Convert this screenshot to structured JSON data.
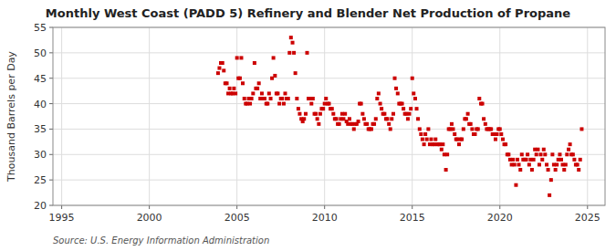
{
  "chart_data": {
    "type": "scatter",
    "title": "Monthly West Coast (PADD 5) Refinery and Blender Net Production of Propane",
    "ylabel": "Thousand Barrels per Day",
    "annotation": "Source: U.S. Energy Information Administration",
    "color": "#cc0000",
    "marker": "square",
    "grid": true,
    "xlim": [
      1994.5,
      2026
    ],
    "ylim": [
      20,
      55
    ],
    "xticks": [
      1995,
      2000,
      2005,
      2010,
      2015,
      2020,
      2025
    ],
    "yticks": [
      20,
      25,
      30,
      35,
      40,
      45,
      50,
      55
    ],
    "x": [
      2003.92,
      2004.0,
      2004.08,
      2004.17,
      2004.25,
      2004.33,
      2004.42,
      2004.5,
      2004.58,
      2004.67,
      2004.75,
      2004.83,
      2004.92,
      2005.0,
      2005.08,
      2005.17,
      2005.25,
      2005.33,
      2005.42,
      2005.5,
      2005.58,
      2005.67,
      2005.75,
      2005.83,
      2005.92,
      2006.0,
      2006.08,
      2006.17,
      2006.25,
      2006.33,
      2006.42,
      2006.5,
      2006.58,
      2006.67,
      2006.75,
      2006.83,
      2006.92,
      2007.0,
      2007.08,
      2007.17,
      2007.25,
      2007.33,
      2007.42,
      2007.5,
      2007.58,
      2007.67,
      2007.75,
      2007.83,
      2007.92,
      2008.0,
      2008.08,
      2008.17,
      2008.25,
      2008.33,
      2008.42,
      2008.5,
      2008.58,
      2008.67,
      2008.75,
      2008.83,
      2008.92,
      2009.0,
      2009.08,
      2009.17,
      2009.25,
      2009.33,
      2009.42,
      2009.5,
      2009.58,
      2009.67,
      2009.75,
      2009.83,
      2009.92,
      2010.0,
      2010.08,
      2010.17,
      2010.25,
      2010.33,
      2010.42,
      2010.5,
      2010.58,
      2010.67,
      2010.75,
      2010.83,
      2010.92,
      2011.0,
      2011.08,
      2011.17,
      2011.25,
      2011.33,
      2011.42,
      2011.5,
      2011.58,
      2011.67,
      2011.75,
      2011.83,
      2011.92,
      2012.0,
      2012.08,
      2012.17,
      2012.25,
      2012.33,
      2012.42,
      2012.5,
      2012.58,
      2012.67,
      2012.75,
      2012.83,
      2012.92,
      2013.0,
      2013.08,
      2013.17,
      2013.25,
      2013.33,
      2013.42,
      2013.5,
      2013.58,
      2013.67,
      2013.75,
      2013.83,
      2013.92,
      2014.0,
      2014.08,
      2014.17,
      2014.25,
      2014.33,
      2014.42,
      2014.5,
      2014.58,
      2014.67,
      2014.75,
      2014.83,
      2014.92,
      2015.0,
      2015.08,
      2015.17,
      2015.25,
      2015.33,
      2015.42,
      2015.5,
      2015.58,
      2015.67,
      2015.75,
      2015.83,
      2015.92,
      2016.0,
      2016.08,
      2016.17,
      2016.25,
      2016.33,
      2016.42,
      2016.5,
      2016.58,
      2016.67,
      2016.75,
      2016.83,
      2016.92,
      2017.0,
      2017.08,
      2017.17,
      2017.25,
      2017.33,
      2017.42,
      2017.5,
      2017.58,
      2017.67,
      2017.75,
      2017.83,
      2017.92,
      2018.0,
      2018.08,
      2018.17,
      2018.25,
      2018.33,
      2018.42,
      2018.5,
      2018.58,
      2018.67,
      2018.75,
      2018.83,
      2018.92,
      2019.0,
      2019.08,
      2019.17,
      2019.25,
      2019.33,
      2019.42,
      2019.5,
      2019.58,
      2019.67,
      2019.75,
      2019.83,
      2019.92,
      2020.0,
      2020.08,
      2020.17,
      2020.25,
      2020.33,
      2020.42,
      2020.5,
      2020.58,
      2020.67,
      2020.75,
      2020.83,
      2020.92,
      2021.0,
      2021.08,
      2021.17,
      2021.25,
      2021.33,
      2021.42,
      2021.5,
      2021.58,
      2021.67,
      2021.75,
      2021.83,
      2021.92,
      2022.0,
      2022.08,
      2022.17,
      2022.25,
      2022.33,
      2022.42,
      2022.5,
      2022.58,
      2022.67,
      2022.75,
      2022.83,
      2022.92,
      2023.0,
      2023.08,
      2023.17,
      2023.25,
      2023.33,
      2023.42,
      2023.5,
      2023.58,
      2023.67,
      2023.75,
      2023.83,
      2023.92,
      2024.0,
      2024.08,
      2024.17,
      2024.25,
      2024.33,
      2024.42,
      2024.5,
      2024.58,
      2024.67
    ],
    "values": [
      46.0,
      47.0,
      48.0,
      48.0,
      46.5,
      44.0,
      44.0,
      42.0,
      43.0,
      42.0,
      42.0,
      43.0,
      42.0,
      49.0,
      45.0,
      45.0,
      49.0,
      44.0,
      41.0,
      40.0,
      40.0,
      41.0,
      40.0,
      41.0,
      42.0,
      48.0,
      43.0,
      43.0,
      44.0,
      41.0,
      42.0,
      41.0,
      41.0,
      40.0,
      40.0,
      42.0,
      41.0,
      45.0,
      49.0,
      45.5,
      42.0,
      42.0,
      40.0,
      41.0,
      41.0,
      40.0,
      42.0,
      41.0,
      41.0,
      50.0,
      53.0,
      52.0,
      50.0,
      46.0,
      41.0,
      39.0,
      38.0,
      37.0,
      36.5,
      37.0,
      38.0,
      50.0,
      41.0,
      41.0,
      40.0,
      41.0,
      38.0,
      38.0,
      37.0,
      36.0,
      38.0,
      39.0,
      39.0,
      40.0,
      41.0,
      40.0,
      40.0,
      39.0,
      39.0,
      38.0,
      37.0,
      37.0,
      36.0,
      36.0,
      37.0,
      38.0,
      37.0,
      38.0,
      36.5,
      36.0,
      37.0,
      36.0,
      36.0,
      35.0,
      36.0,
      36.0,
      36.5,
      40.0,
      40.0,
      38.0,
      37.0,
      36.0,
      36.0,
      35.0,
      35.0,
      35.0,
      36.0,
      36.0,
      37.0,
      41.0,
      42.0,
      40.0,
      39.0,
      38.0,
      38.0,
      37.0,
      37.0,
      36.0,
      35.0,
      37.0,
      38.0,
      45.0,
      43.0,
      42.0,
      40.0,
      40.0,
      40.0,
      39.0,
      38.0,
      38.0,
      37.0,
      38.0,
      39.0,
      45.0,
      42.0,
      41.0,
      39.0,
      37.0,
      35.0,
      34.0,
      33.0,
      32.0,
      34.0,
      33.0,
      35.0,
      32.0,
      33.0,
      32.0,
      32.0,
      33.0,
      32.0,
      32.0,
      32.0,
      31.0,
      32.0,
      30.0,
      27.0,
      30.0,
      35.0,
      35.0,
      36.0,
      35.0,
      34.0,
      33.0,
      33.0,
      32.0,
      33.0,
      33.0,
      35.0,
      37.0,
      37.0,
      38.0,
      36.0,
      36.0,
      35.0,
      34.0,
      34.0,
      35.0,
      35.0,
      41.0,
      40.0,
      40.0,
      37.0,
      36.0,
      35.0,
      35.0,
      35.0,
      35.0,
      34.0,
      34.0,
      33.0,
      34.0,
      35.0,
      35.0,
      34.0,
      33.0,
      32.0,
      32.0,
      30.0,
      30.0,
      29.0,
      28.0,
      29.0,
      28.0,
      24.0,
      29.0,
      28.0,
      27.0,
      30.0,
      29.0,
      29.0,
      29.0,
      30.0,
      28.0,
      29.0,
      27.0,
      29.0,
      31.0,
      30.0,
      31.0,
      28.0,
      30.0,
      29.0,
      31.0,
      30.0,
      28.0,
      27.0,
      22.0,
      25.0,
      30.0,
      28.0,
      27.0,
      28.0,
      29.0,
      30.0,
      29.0,
      28.0,
      27.0,
      28.0,
      30.0,
      31.0,
      32.0,
      30.0,
      30.0,
      29.0,
      28.0,
      28.0,
      27.0,
      29.0,
      35.0
    ]
  }
}
